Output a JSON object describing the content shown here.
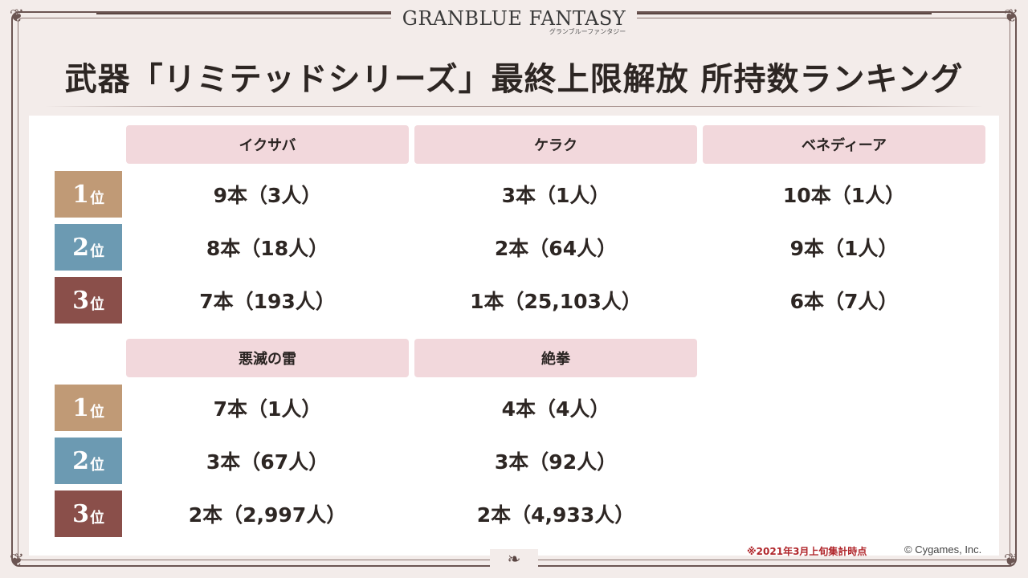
{
  "logo": {
    "main": "GRANBLUE FANTASY",
    "sub": "グランブルーファンタジー"
  },
  "title": "武器「リミテッドシリーズ」最終上限解放  所持数ランキング",
  "rank_labels": [
    {
      "num": "1",
      "suffix": "位"
    },
    {
      "num": "2",
      "suffix": "位"
    },
    {
      "num": "3",
      "suffix": "位"
    }
  ],
  "group1": {
    "headers": [
      "イクサバ",
      "ケラク",
      "ベネディーア"
    ],
    "rows": [
      [
        "9本（3人）",
        "3本（1人）",
        "10本（1人）"
      ],
      [
        "8本（18人）",
        "2本（64人）",
        "9本（1人）"
      ],
      [
        "7本（193人）",
        "1本（25,103人）",
        "6本（7人）"
      ]
    ]
  },
  "group2": {
    "headers": [
      "悪滅の雷",
      "絶拳"
    ],
    "rows": [
      [
        "7本（1人）",
        "4本（4人）"
      ],
      [
        "3本（67人）",
        "3本（92人）"
      ],
      [
        "2本（2,997人）",
        "2本（4,933人）"
      ]
    ]
  },
  "footer": {
    "note": "※2021年3月上旬集計時点",
    "copyright": "© Cygames, Inc."
  },
  "colors": {
    "rank1": "#c09a76",
    "rank2": "#6c9ab2",
    "rank3": "#8a4f4a",
    "header_bg": "#f2d8dc",
    "note": "#b0252a"
  }
}
